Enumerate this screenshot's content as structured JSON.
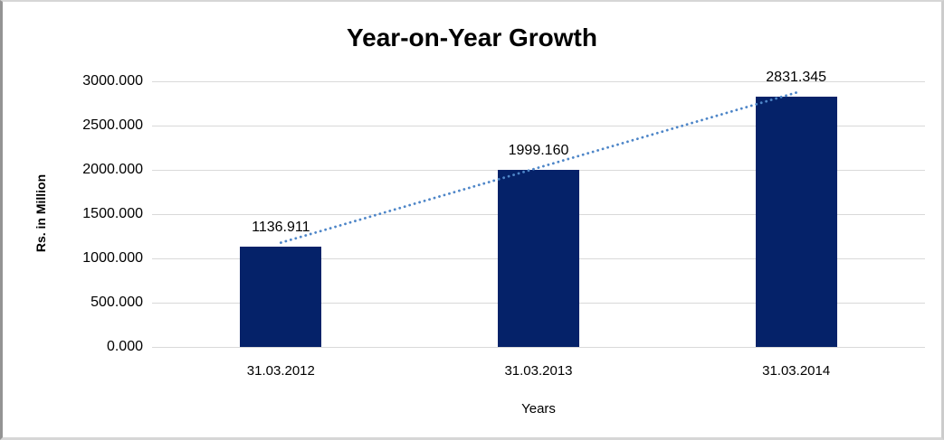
{
  "chart_data": {
    "type": "bar",
    "title": "Year-on-Year Growth",
    "categories": [
      "31.03.2012",
      "31.03.2013",
      "31.03.2014"
    ],
    "values": [
      1136.911,
      1999.16,
      2831.345
    ],
    "data_labels": [
      "1136.911",
      "1999.160",
      "2831.345"
    ],
    "xlabel": "Years",
    "ylabel": "Rs. in Million",
    "ylim": [
      0,
      3000
    ],
    "ytick_step": 500,
    "ytick_labels": [
      "0.000",
      "500.000",
      "1000.000",
      "1500.000",
      "2000.000",
      "2500.000",
      "3000.000"
    ],
    "grid": true,
    "legend": false,
    "trendline": {
      "style": "dotted",
      "from_category_index": 0,
      "to_category_index": 2
    },
    "colors": {
      "bar": "#052269",
      "trendline": "#4e86c8",
      "gridline": "#d9d9d9",
      "text": "#000000",
      "background": "#ffffff",
      "frame_border": "#c9c9c9"
    }
  }
}
